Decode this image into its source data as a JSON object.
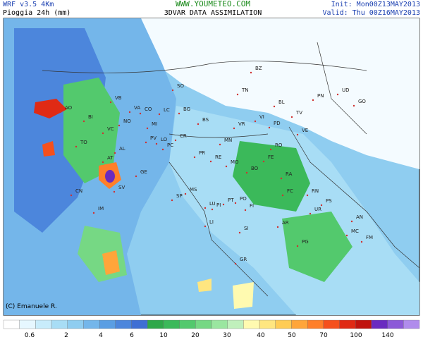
{
  "header": {
    "model": "WRF v3.5  4Km",
    "product": "Pioggia 24h (mm)",
    "site": "WWW.YOUMETEO.COM",
    "subtitle": "3DVAR DATA ASSIMILATION",
    "init": "Init: Mon00Z13MAY2013",
    "valid": "Valid: Thu 00Z16MAY2013"
  },
  "credit": "(C) Emanuele R.",
  "cities": [
    "AO",
    "BI",
    "VB",
    "VA",
    "CO",
    "LC",
    "SO",
    "BG",
    "BS",
    "TN",
    "BZ",
    "BL",
    "PN",
    "UD",
    "GO",
    "TV",
    "VE",
    "PD",
    "VI",
    "VR",
    "MN",
    "RO",
    "FE",
    "BO",
    "RA",
    "FC",
    "RN",
    "PS",
    "UR",
    "AN",
    "MC",
    "FM",
    "PG",
    "AR",
    "SI",
    "FI",
    "PO",
    "PT",
    "LU",
    "MS",
    "SP",
    "GE",
    "SV",
    "IM",
    "CN",
    "TO",
    "AT",
    "AL",
    "PV",
    "LO",
    "MI",
    "NO",
    "VC",
    "CR",
    "PC",
    "PR",
    "RE",
    "MO",
    "LI",
    "PI",
    "GR"
  ],
  "colorbar": {
    "colors": [
      "#ffffff",
      "#e6f7ff",
      "#c8ecfb",
      "#a8ddf5",
      "#8fcdf0",
      "#74b6ea",
      "#5a9ee3",
      "#4c86dc",
      "#3f6fd4",
      "#2fa84a",
      "#3bb95a",
      "#53c96d",
      "#76d884",
      "#9ae6a0",
      "#c0f0bc",
      "#fffab0",
      "#ffe680",
      "#ffcc55",
      "#ffa53a",
      "#ff7f2a",
      "#f5501d",
      "#e02a14",
      "#c0140e",
      "#6a2bc0",
      "#8c5ad8",
      "#b08cec"
    ],
    "labels": [
      "0.6",
      "2",
      "4",
      "6",
      "10",
      "20",
      "30",
      "40",
      "50",
      "70",
      "100",
      "140"
    ]
  }
}
